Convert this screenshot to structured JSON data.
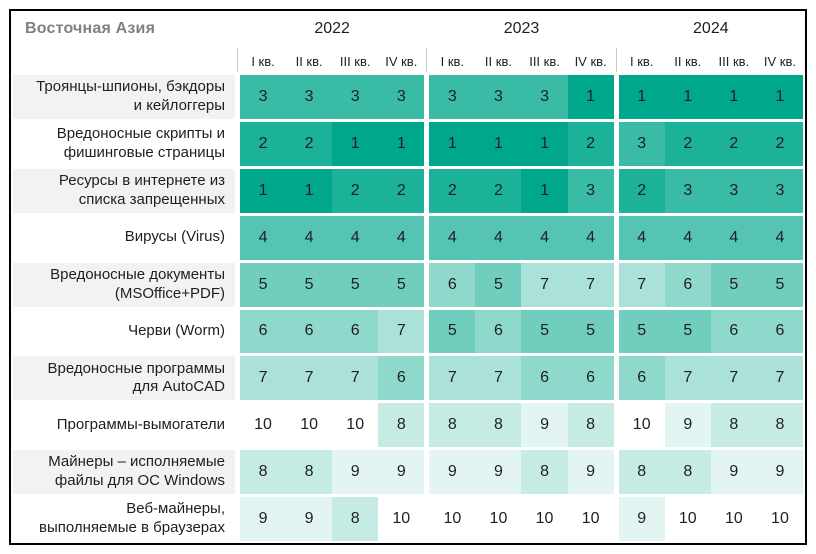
{
  "title": "Восточная Азия",
  "colors": {
    "accent_dark": "#00a78c",
    "text": "#1f1f1f",
    "title_gray": "#808080",
    "label_alt_bg": "#f2f2f2",
    "label_bg": "#ffffff",
    "frame_border": "#000000",
    "header_divider": "#c9c9c9",
    "rank_palette": [
      "#00a78c",
      "#1cb199",
      "#39bba6",
      "#55c4b2",
      "#71cebf",
      "#8ed8cc",
      "#aae2d9",
      "#c6ebe5",
      "#e3f5f2",
      "#ffffff"
    ]
  },
  "chart_data": {
    "type": "heatmap",
    "title": "Восточная Азия",
    "years": [
      "2022",
      "2023",
      "2024"
    ],
    "quarters": [
      "I кв.",
      "II кв.",
      "III кв.",
      "IV кв."
    ],
    "rows": [
      {
        "label_lines": [
          "Троянцы-шпионы, бэкдоры",
          "и кейлоггеры"
        ],
        "ranks": [
          3,
          3,
          3,
          3,
          3,
          3,
          3,
          1,
          1,
          1,
          1,
          1
        ]
      },
      {
        "label_lines": [
          "Вредоносные скрипты и",
          "фишинговые страницы"
        ],
        "ranks": [
          2,
          2,
          1,
          1,
          1,
          1,
          1,
          2,
          3,
          2,
          2,
          2
        ]
      },
      {
        "label_lines": [
          "Ресурсы в интернете из",
          "списка запрещенных"
        ],
        "ranks": [
          1,
          1,
          2,
          2,
          2,
          2,
          1,
          3,
          2,
          3,
          3,
          3
        ]
      },
      {
        "label_lines": [
          "Вирусы (Virus)"
        ],
        "ranks": [
          4,
          4,
          4,
          4,
          4,
          4,
          4,
          4,
          4,
          4,
          4,
          4
        ]
      },
      {
        "label_lines": [
          "Вредоносные документы",
          "(MSOffice+PDF)"
        ],
        "ranks": [
          5,
          5,
          5,
          5,
          6,
          5,
          7,
          7,
          7,
          6,
          5,
          5
        ]
      },
      {
        "label_lines": [
          "Черви (Worm)"
        ],
        "ranks": [
          6,
          6,
          6,
          7,
          5,
          6,
          5,
          5,
          5,
          5,
          6,
          6
        ]
      },
      {
        "label_lines": [
          "Вредоносные программы",
          "для AutoCAD"
        ],
        "ranks": [
          7,
          7,
          7,
          6,
          7,
          7,
          6,
          6,
          6,
          7,
          7,
          7
        ]
      },
      {
        "label_lines": [
          "Программы-вымогатели"
        ],
        "ranks": [
          10,
          10,
          10,
          8,
          8,
          8,
          9,
          8,
          10,
          9,
          8,
          8
        ]
      },
      {
        "label_lines": [
          "Майнеры – исполняемые",
          "файлы для ОС Windows"
        ],
        "ranks": [
          8,
          8,
          9,
          9,
          9,
          9,
          8,
          9,
          8,
          8,
          9,
          9
        ]
      },
      {
        "label_lines": [
          "Веб-майнеры,",
          "выполняемые в браузерах"
        ],
        "ranks": [
          9,
          9,
          8,
          10,
          10,
          10,
          10,
          10,
          9,
          10,
          10,
          10
        ]
      }
    ],
    "scale": {
      "min_rank": 1,
      "max_rank": 10,
      "min_color": "#00a78c",
      "max_color": "#ffffff"
    }
  }
}
